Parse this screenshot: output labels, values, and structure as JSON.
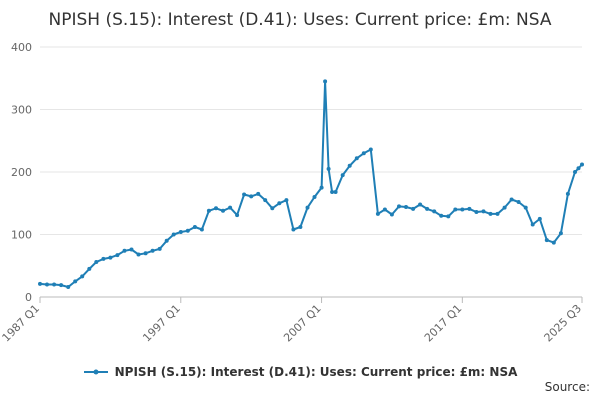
{
  "chart_data": {
    "type": "line",
    "title": "NPISH (S.15): Interest (D.41): Uses: Current price: £m: NSA",
    "xlabel": "",
    "ylabel": "",
    "ylim": [
      0,
      400
    ],
    "yticks": [
      0,
      100,
      200,
      300,
      400
    ],
    "xticks": [
      "1987 Q1",
      "1997 Q1",
      "2007 Q1",
      "2017 Q1",
      "2025 Q3"
    ],
    "grid": true,
    "legend_position": "bottom",
    "series": [
      {
        "name": "NPISH (S.15): Interest (D.41): Uses: Current price: £m: NSA",
        "color": "#1f7fb6",
        "points": [
          [
            "1987 Q1",
            21
          ],
          [
            "1987 Q3",
            20
          ],
          [
            "1988 Q1",
            20
          ],
          [
            "1988 Q3",
            19
          ],
          [
            "1989 Q1",
            16
          ],
          [
            "1989 Q3",
            25
          ],
          [
            "1990 Q1",
            33
          ],
          [
            "1990 Q3",
            45
          ],
          [
            "1991 Q1",
            56
          ],
          [
            "1991 Q3",
            61
          ],
          [
            "1992 Q1",
            63
          ],
          [
            "1992 Q3",
            67
          ],
          [
            "1993 Q1",
            74
          ],
          [
            "1993 Q3",
            76
          ],
          [
            "1994 Q1",
            68
          ],
          [
            "1994 Q3",
            70
          ],
          [
            "1995 Q1",
            74
          ],
          [
            "1995 Q3",
            77
          ],
          [
            "1996 Q1",
            90
          ],
          [
            "1996 Q3",
            100
          ],
          [
            "1997 Q1",
            104
          ],
          [
            "1997 Q3",
            106
          ],
          [
            "1998 Q1",
            112
          ],
          [
            "1998 Q3",
            108
          ],
          [
            "1999 Q1",
            138
          ],
          [
            "1999 Q3",
            142
          ],
          [
            "2000 Q1",
            138
          ],
          [
            "2000 Q3",
            143
          ],
          [
            "2001 Q1",
            131
          ],
          [
            "2001 Q3",
            164
          ],
          [
            "2002 Q1",
            161
          ],
          [
            "2002 Q3",
            165
          ],
          [
            "2003 Q1",
            155
          ],
          [
            "2003 Q3",
            142
          ],
          [
            "2004 Q1",
            150
          ],
          [
            "2004 Q3",
            155
          ],
          [
            "2005 Q1",
            108
          ],
          [
            "2005 Q3",
            112
          ],
          [
            "2006 Q1",
            143
          ],
          [
            "2006 Q3",
            160
          ],
          [
            "2007 Q1",
            175
          ],
          [
            "2007 Q2",
            345
          ],
          [
            "2007 Q3",
            205
          ],
          [
            "2007 Q4",
            168
          ],
          [
            "2008 Q1",
            168
          ],
          [
            "2008 Q3",
            195
          ],
          [
            "2009 Q1",
            210
          ],
          [
            "2009 Q3",
            222
          ],
          [
            "2010 Q1",
            230
          ],
          [
            "2010 Q3",
            236
          ],
          [
            "2011 Q1",
            133
          ],
          [
            "2011 Q3",
            140
          ],
          [
            "2012 Q1",
            132
          ],
          [
            "2012 Q3",
            145
          ],
          [
            "2013 Q1",
            144
          ],
          [
            "2013 Q3",
            141
          ],
          [
            "2014 Q1",
            148
          ],
          [
            "2014 Q3",
            141
          ],
          [
            "2015 Q1",
            137
          ],
          [
            "2015 Q3",
            130
          ],
          [
            "2016 Q1",
            129
          ],
          [
            "2016 Q3",
            140
          ],
          [
            "2017 Q1",
            140
          ],
          [
            "2017 Q3",
            141
          ],
          [
            "2018 Q1",
            136
          ],
          [
            "2018 Q3",
            137
          ],
          [
            "2019 Q1",
            133
          ],
          [
            "2019 Q3",
            133
          ],
          [
            "2020 Q1",
            143
          ],
          [
            "2020 Q3",
            156
          ],
          [
            "2021 Q1",
            152
          ],
          [
            "2021 Q3",
            143
          ],
          [
            "2022 Q1",
            116
          ],
          [
            "2022 Q3",
            125
          ],
          [
            "2023 Q1",
            91
          ],
          [
            "2023 Q3",
            87
          ],
          [
            "2024 Q1",
            102
          ],
          [
            "2024 Q3",
            165
          ],
          [
            "2025 Q1",
            200
          ],
          [
            "2025 Q2",
            206
          ],
          [
            "2025 Q3",
            212
          ]
        ]
      }
    ]
  },
  "footer": {
    "source_label": "Source:"
  }
}
